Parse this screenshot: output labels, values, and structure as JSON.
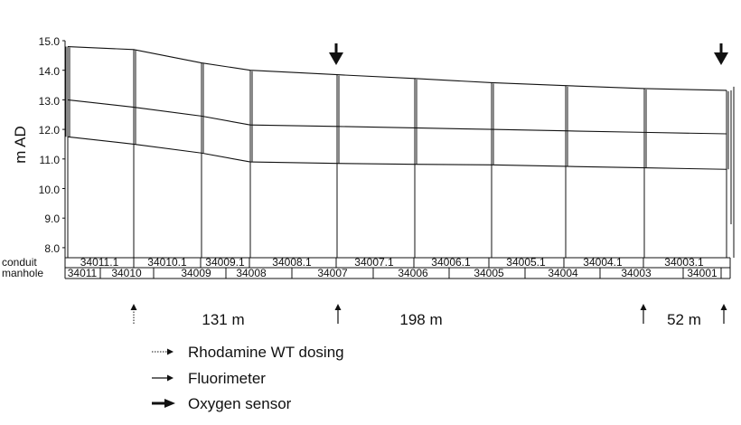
{
  "y_axis": {
    "label": "m AD",
    "ticks": [
      "15.0",
      "14.0",
      "13.0",
      "12.0",
      "11.0",
      "10.0",
      "9.0",
      "8.0"
    ]
  },
  "rows": {
    "conduit_label": "conduit",
    "manhole_label": "manhole",
    "conduits": [
      "34011.1",
      "34010.1",
      "34009.1",
      "34008.1",
      "34007.1",
      "34006.1",
      "34005.1",
      "34004.1",
      "34003.1"
    ],
    "manholes": [
      "34011",
      "34010",
      "34009",
      "34008",
      "34007",
      "34006",
      "34005",
      "34004",
      "34003",
      "34001"
    ]
  },
  "profile": {
    "stations": [
      0,
      73,
      148,
      202,
      298,
      384,
      469,
      551,
      638,
      729
    ],
    "ground_level": [
      14.8,
      14.7,
      14.25,
      14.0,
      13.85,
      13.72,
      13.58,
      13.48,
      13.38,
      13.32
    ],
    "crown_level": [
      13.0,
      12.75,
      12.45,
      12.15,
      12.1,
      12.05,
      12.0,
      11.95,
      11.9,
      11.85
    ],
    "invert_level": [
      11.75,
      11.5,
      11.2,
      10.9,
      10.85,
      10.82,
      10.8,
      10.75,
      10.7,
      10.65
    ]
  },
  "distances": [
    "131 m",
    "198 m",
    "52 m"
  ],
  "legend": [
    {
      "text": "Rhodamine WT dosing",
      "style": "dotted"
    },
    {
      "text": "Fluorimeter",
      "style": "thin"
    },
    {
      "text": "Oxygen sensor",
      "style": "bold"
    }
  ],
  "colors": {
    "line": "#111111",
    "background": "#ffffff"
  }
}
